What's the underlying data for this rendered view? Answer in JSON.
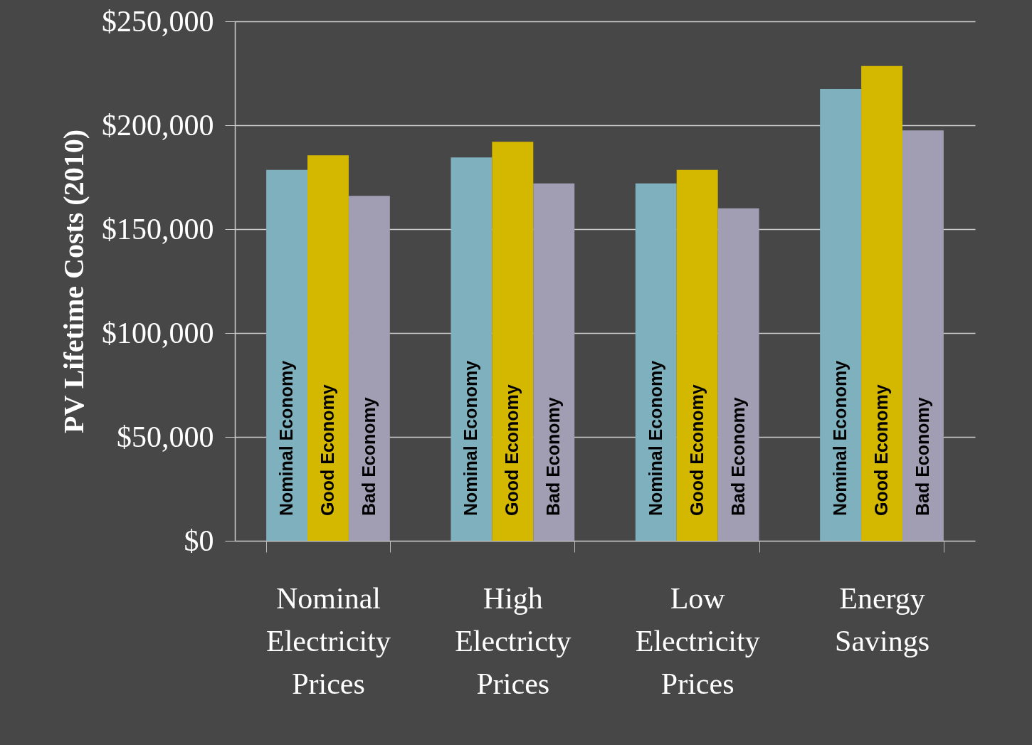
{
  "chart_data": {
    "type": "bar",
    "ylabel": "PV Lifetime Costs (2010)",
    "categories": [
      "Nominal Electricity Prices",
      "High Electricty Prices",
      "Low Electricity Prices",
      "Energy Savings"
    ],
    "series": [
      {
        "name": "Nominal Economy",
        "color": "#7fb0be",
        "values": [
          178500,
          184500,
          172000,
          217500
        ]
      },
      {
        "name": "Good Economy",
        "color": "#d4b800",
        "values": [
          185500,
          192000,
          178500,
          228500
        ]
      },
      {
        "name": "Bad Economy",
        "color": "#a19db3",
        "values": [
          166000,
          172000,
          160000,
          197500
        ]
      }
    ],
    "ylim": [
      0,
      250000
    ],
    "yticks": [
      {
        "value": 0,
        "label": "$0"
      },
      {
        "value": 50000,
        "label": "$50,000"
      },
      {
        "value": 100000,
        "label": "$100,000"
      },
      {
        "value": 150000,
        "label": "$150,000"
      },
      {
        "value": 200000,
        "label": "$200,000"
      },
      {
        "value": 250000,
        "label": "$250,000"
      }
    ],
    "grid": "y",
    "legend": false
  }
}
